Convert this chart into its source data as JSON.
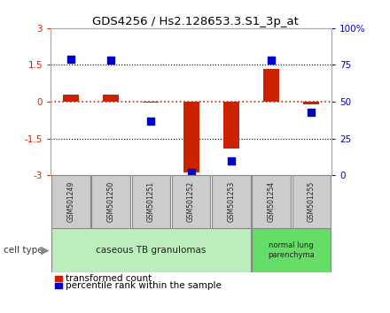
{
  "title": "GDS4256 / Hs2.128653.3.S1_3p_at",
  "samples": [
    "GSM501249",
    "GSM501250",
    "GSM501251",
    "GSM501252",
    "GSM501253",
    "GSM501254",
    "GSM501255"
  ],
  "transformed_count": [
    0.3,
    0.3,
    -0.05,
    -2.9,
    -1.9,
    1.35,
    -0.1
  ],
  "percentile_rank": [
    79,
    78,
    37,
    2,
    10,
    78,
    43
  ],
  "ylim_left": [
    -3,
    3
  ],
  "ylim_right": [
    0,
    100
  ],
  "yticks_left": [
    -3,
    -1.5,
    0,
    1.5,
    3
  ],
  "yticks_right": [
    0,
    25,
    50,
    75,
    100
  ],
  "ytick_labels_left": [
    "-3",
    "-1.5",
    "0",
    "1.5",
    "3"
  ],
  "ytick_labels_right": [
    "0",
    "25",
    "50",
    "75",
    "100%"
  ],
  "bar_color": "#cc2200",
  "dot_color": "#0000cc",
  "group1_indices": [
    0,
    1,
    2,
    3,
    4
  ],
  "group1_label": "caseous TB granulomas",
  "group2_indices": [
    5,
    6
  ],
  "group2_label": "normal lung\nparenchyma",
  "group1_bg": "#bbeebb",
  "group2_bg": "#66dd66",
  "cell_type_label": "cell type",
  "legend_bar_label": "transformed count",
  "legend_dot_label": "percentile rank within the sample",
  "bar_width": 0.4,
  "dot_size": 40,
  "left_axis_color": "#cc2200",
  "right_axis_color": "#0000cc",
  "tick_label_bg": "#cccccc",
  "bg_color": "#ffffff"
}
